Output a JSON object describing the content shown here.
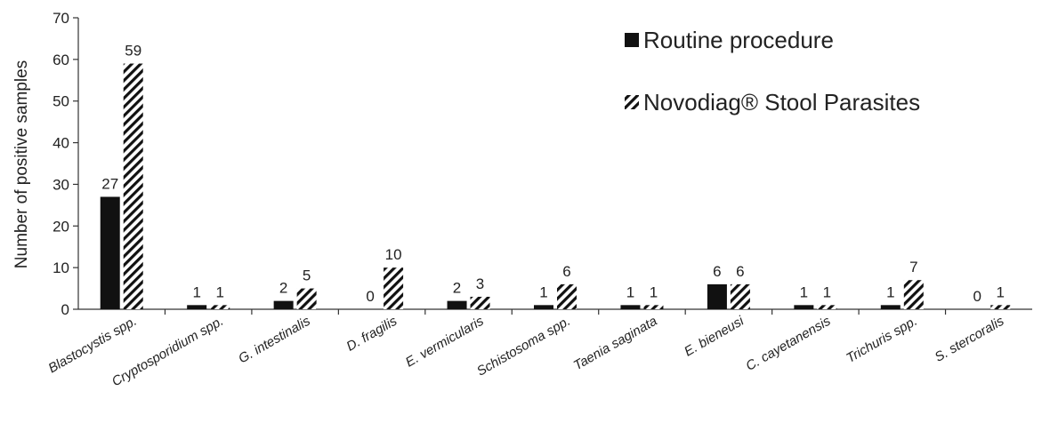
{
  "chart_data": {
    "type": "bar",
    "ylabel": "Number of positive samples",
    "xlabel": "",
    "ylim": [
      0,
      70
    ],
    "yticks": [
      0,
      10,
      20,
      30,
      40,
      50,
      60,
      70
    ],
    "grid": false,
    "legend_position": "top-right",
    "categories": [
      "Blastocystis spp.",
      "Cryptosporidium spp.",
      "G. intestinalis",
      "D. fragilis",
      "E. vermicularis",
      "Schistosoma spp.",
      "Taenia saginata",
      "E. bieneusi",
      "C. cayetanensis",
      "Trichuris spp.",
      "S. stercoralis"
    ],
    "series": [
      {
        "name": "Routine procedure",
        "fill": "solid",
        "color": "#111111",
        "values": [
          27,
          1,
          2,
          0,
          2,
          1,
          1,
          6,
          1,
          1,
          0
        ]
      },
      {
        "name": "Novodiag® Stool Parasites",
        "fill": "hatched",
        "color": "#111111",
        "values": [
          59,
          1,
          5,
          10,
          3,
          6,
          1,
          6,
          1,
          7,
          1
        ]
      }
    ]
  }
}
